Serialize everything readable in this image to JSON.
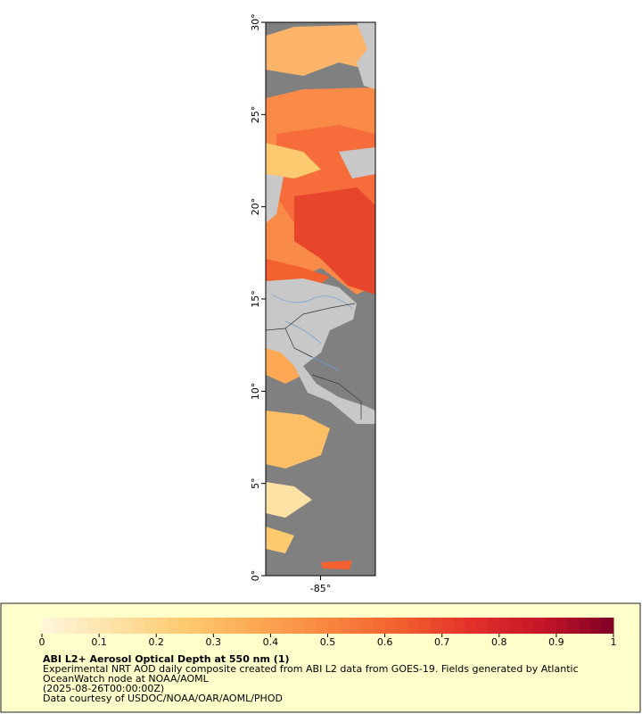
{
  "map": {
    "lat_axis": {
      "range": [
        0,
        30
      ],
      "ticks": [
        {
          "value": 0,
          "label": "0°"
        },
        {
          "value": 5,
          "label": "5°"
        },
        {
          "value": 10,
          "label": "10°"
        },
        {
          "value": 15,
          "label": "15°"
        },
        {
          "value": 20,
          "label": "20°"
        },
        {
          "value": 25,
          "label": "25°"
        },
        {
          "value": 30,
          "label": "30°"
        }
      ]
    },
    "lon_axis": {
      "range": [
        -88,
        -82
      ],
      "ticks": [
        {
          "value": -85,
          "label": "-85°"
        }
      ]
    }
  },
  "colorbar": {
    "range": [
      0,
      1
    ],
    "ticks": [
      0,
      0.1,
      0.2,
      0.3,
      0.4,
      0.5,
      0.6,
      0.7,
      0.8,
      0.9,
      1
    ],
    "colors": [
      "#fef6dc",
      "#fde2a6",
      "#fdca70",
      "#fca855",
      "#f98640",
      "#f2612f",
      "#e3312a",
      "#c41628",
      "#800026"
    ]
  },
  "legend": {
    "title": "ABI L2+ Aerosol Optical Depth at 550 nm (1)",
    "lines": [
      "Experimental NRT AOD daily composite created from ABI L2 data from GOES-19. Fields generated by Atlantic",
      "OceanWatch node at NOAA/AOML",
      "(2025-08-26T00:00:00Z)",
      "Data courtesy of USDOC/NOAA/OAR/AOML/PHOD"
    ]
  }
}
